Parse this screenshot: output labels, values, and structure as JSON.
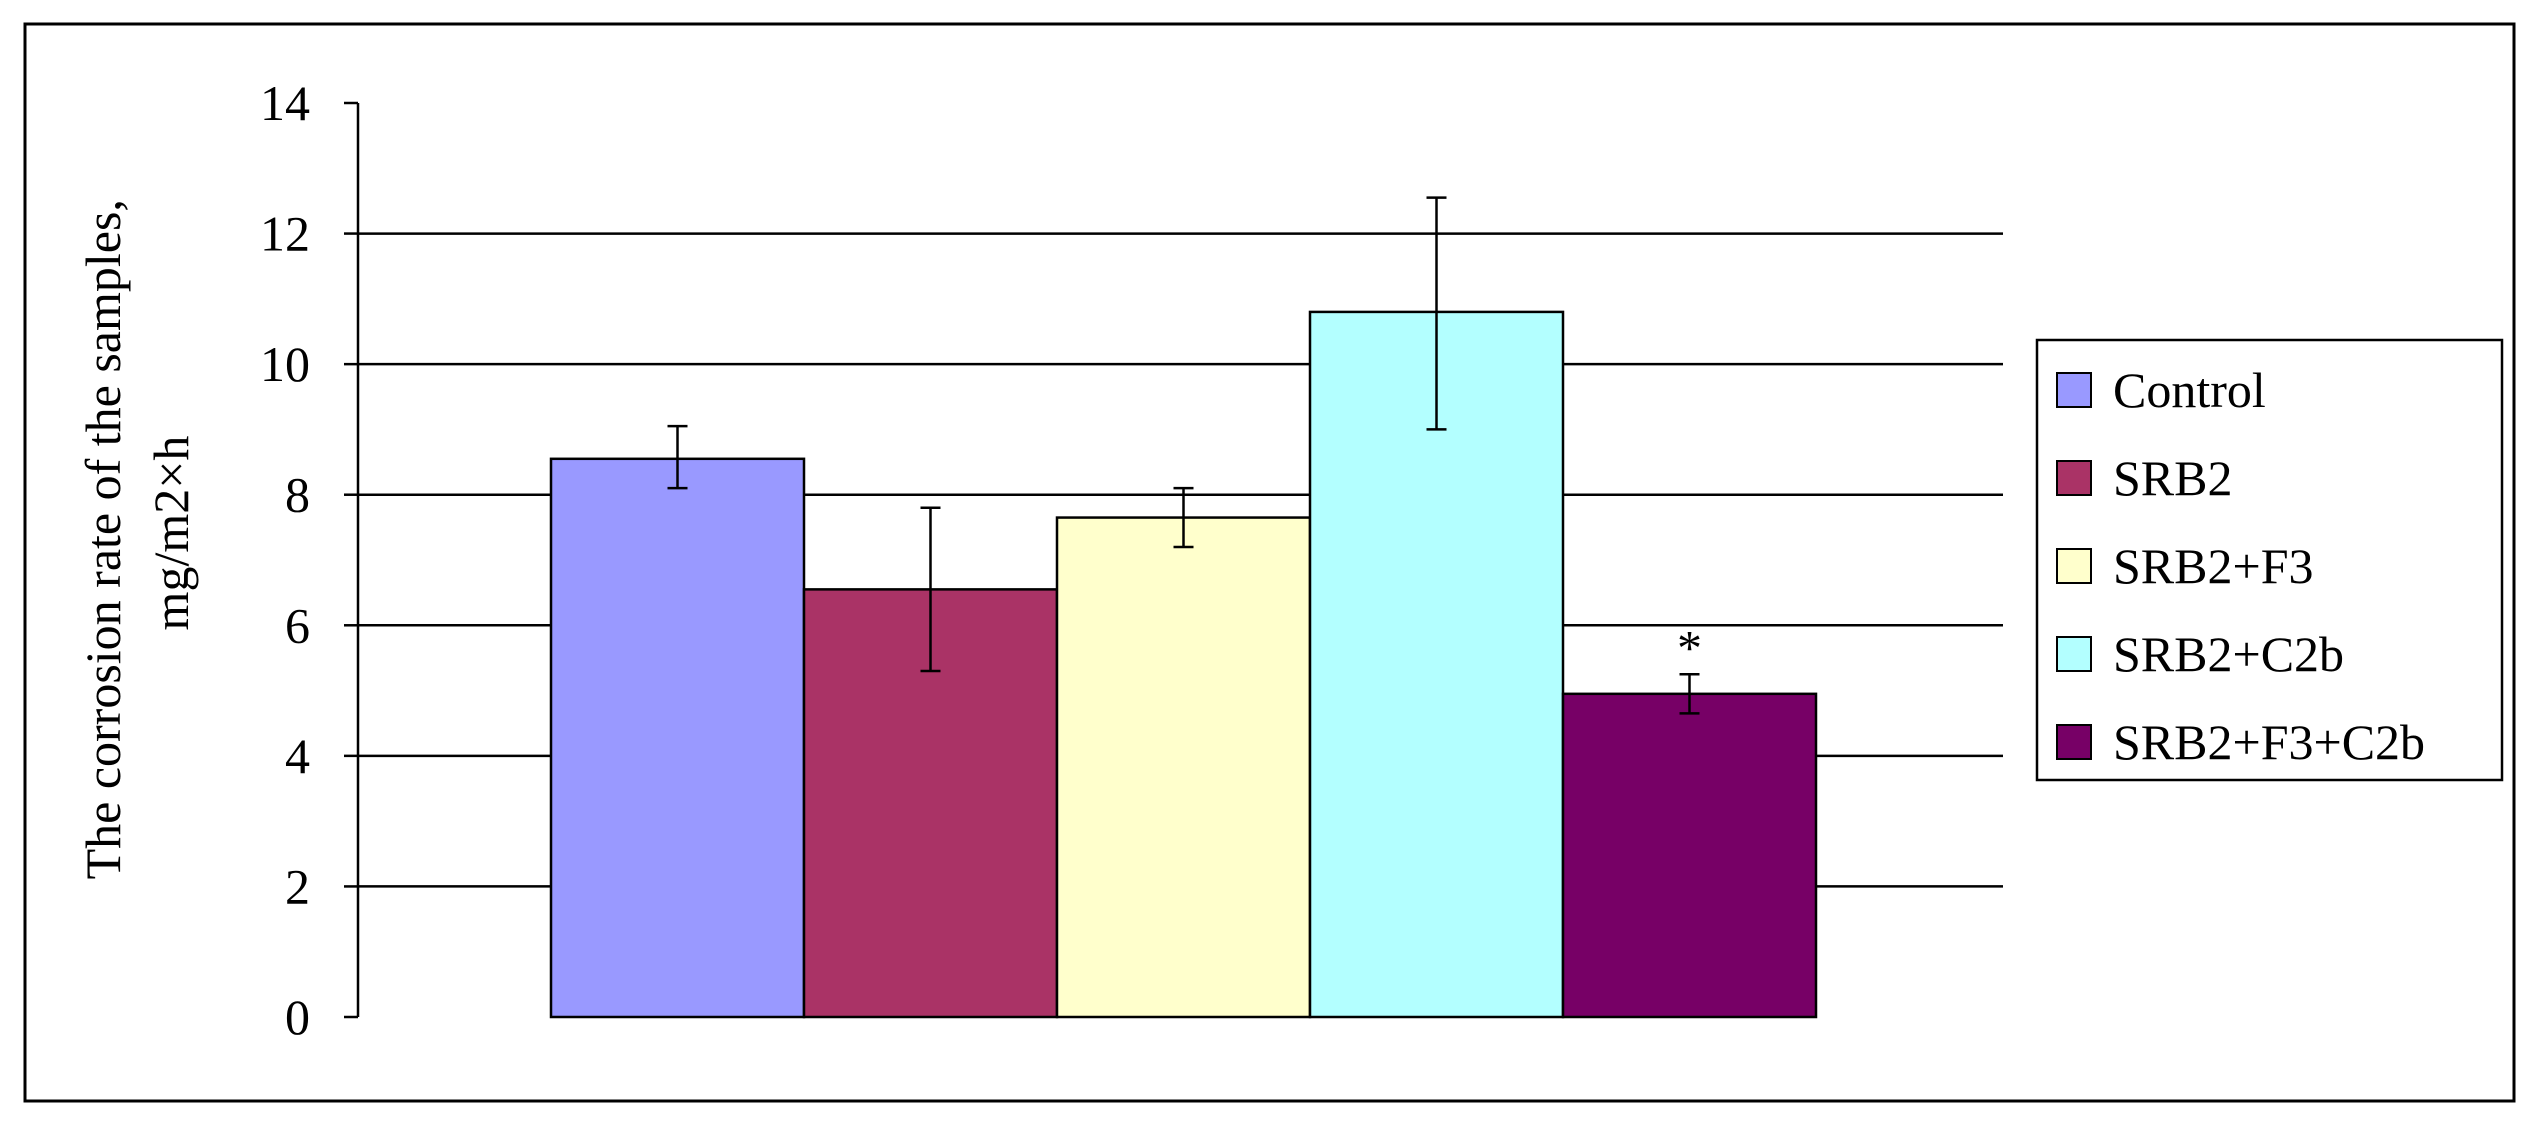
{
  "chart_data": {
    "type": "bar",
    "title": "",
    "xlabel": "",
    "ylabel_lines": [
      "The corrosion rate of the samples,",
      "mg/m2×h"
    ],
    "ylim": [
      0,
      14
    ],
    "yticks": [
      0,
      2,
      4,
      6,
      8,
      10,
      12,
      14
    ],
    "grid": true,
    "legend_position": "right",
    "series": [
      {
        "name": "Control",
        "value": 8.55,
        "error_low": 8.1,
        "error_high": 9.05,
        "color": "#9999FF",
        "annotation": ""
      },
      {
        "name": "SRB2",
        "value": 6.55,
        "error_low": 5.3,
        "error_high": 7.8,
        "color": "#AA3366",
        "annotation": ""
      },
      {
        "name": "SRB2+F3",
        "value": 7.65,
        "error_low": 7.2,
        "error_high": 8.1,
        "color": "#FFFFCC",
        "annotation": ""
      },
      {
        "name": "SRB2+C2b",
        "value": 10.8,
        "error_low": 9.0,
        "error_high": 12.55,
        "color": "#B3FFFF",
        "annotation": ""
      },
      {
        "name": "SRB2+F3+C2b",
        "value": 4.95,
        "error_low": 4.65,
        "error_high": 5.25,
        "color": "#770066",
        "annotation": "*"
      }
    ]
  }
}
